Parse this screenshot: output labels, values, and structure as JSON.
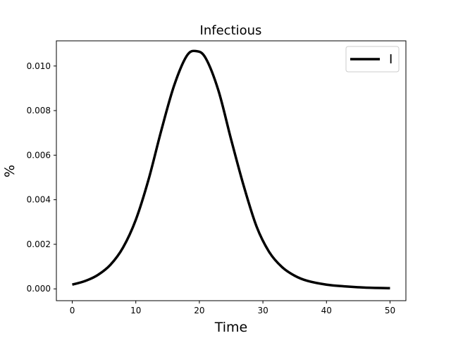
{
  "chart_data": {
    "type": "line",
    "title": "Infectious",
    "xlabel": "Time",
    "ylabel": "%",
    "xlim": [
      -2.5,
      52.5
    ],
    "ylim": [
      -0.00053,
      0.01113
    ],
    "xticks": [
      0,
      10,
      20,
      30,
      40,
      50
    ],
    "yticks": [
      0.0,
      0.002,
      0.004,
      0.006,
      0.008,
      0.01
    ],
    "ytick_labels": [
      "0.000",
      "0.002",
      "0.004",
      "0.006",
      "0.008",
      "0.010"
    ],
    "grid": false,
    "legend": {
      "position": "top-right",
      "entries": [
        "I"
      ]
    },
    "series": [
      {
        "name": "I",
        "color": "#000000",
        "x": [
          0,
          2,
          4,
          6,
          8,
          10,
          12,
          14,
          16,
          18,
          19.5,
          21,
          23,
          25,
          27,
          29,
          31,
          33,
          35,
          37,
          40,
          43,
          46,
          50
        ],
        "y": [
          0.00019,
          0.00035,
          0.00062,
          0.00108,
          0.00186,
          0.0031,
          0.0049,
          0.0071,
          0.0091,
          0.01045,
          0.01067,
          0.01035,
          0.0089,
          0.0067,
          0.0046,
          0.0028,
          0.00165,
          0.00098,
          0.00059,
          0.00036,
          0.00019,
          0.00011,
          6e-05,
          3e-05
        ]
      }
    ]
  }
}
